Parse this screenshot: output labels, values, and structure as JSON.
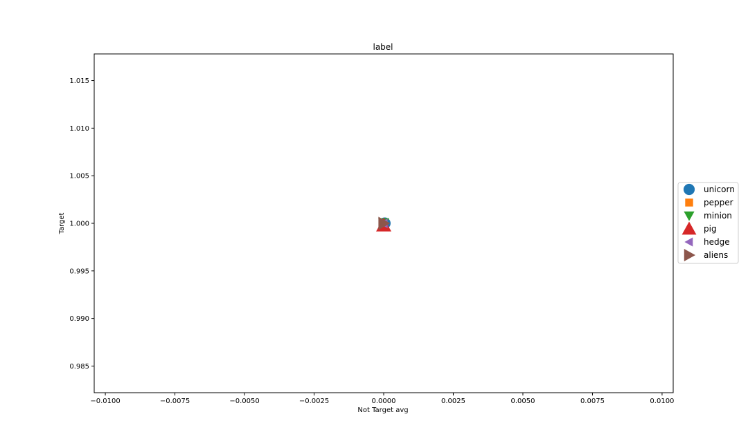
{
  "chart_data": {
    "type": "scatter",
    "title": "label",
    "xlabel": "Not Target avg",
    "ylabel": "Target",
    "xlim": [
      -0.0104,
      0.0104
    ],
    "ylim": [
      0.9822,
      1.0178
    ],
    "xticks": [
      -0.01,
      -0.0075,
      -0.005,
      -0.0025,
      0.0,
      0.0025,
      0.005,
      0.0075,
      0.01
    ],
    "xtick_labels": [
      "−0.0100",
      "−0.0075",
      "−0.0050",
      "−0.0025",
      "0.0000",
      "0.0025",
      "0.0050",
      "0.0075",
      "0.0100"
    ],
    "yticks": [
      0.985,
      0.99,
      0.995,
      1.0,
      1.005,
      1.01,
      1.015
    ],
    "ytick_labels": [
      "0.985",
      "0.990",
      "0.995",
      "1.000",
      "1.005",
      "1.010",
      "1.015"
    ],
    "grid": false,
    "legend_position": "outside right",
    "series": [
      {
        "name": "unicorn",
        "marker": "circle",
        "color": "#1f77b4",
        "points": [
          {
            "x": 0.0,
            "y": 1.0
          }
        ]
      },
      {
        "name": "pepper",
        "marker": "square",
        "color": "#ff7f0e",
        "points": [
          {
            "x": 0.0,
            "y": 1.0
          }
        ]
      },
      {
        "name": "minion",
        "marker": "triangle-down",
        "color": "#2ca02c",
        "points": [
          {
            "x": 0.0,
            "y": 1.0
          }
        ]
      },
      {
        "name": "pig",
        "marker": "triangle-up",
        "color": "#d62728",
        "points": [
          {
            "x": 0.0,
            "y": 1.0
          }
        ]
      },
      {
        "name": "hedge",
        "marker": "triangle-left",
        "color": "#9467bd",
        "points": [
          {
            "x": 0.0,
            "y": 1.0
          }
        ]
      },
      {
        "name": "aliens",
        "marker": "triangle-right",
        "color": "#8c564b",
        "points": [
          {
            "x": 0.0,
            "y": 1.0
          }
        ]
      }
    ]
  }
}
